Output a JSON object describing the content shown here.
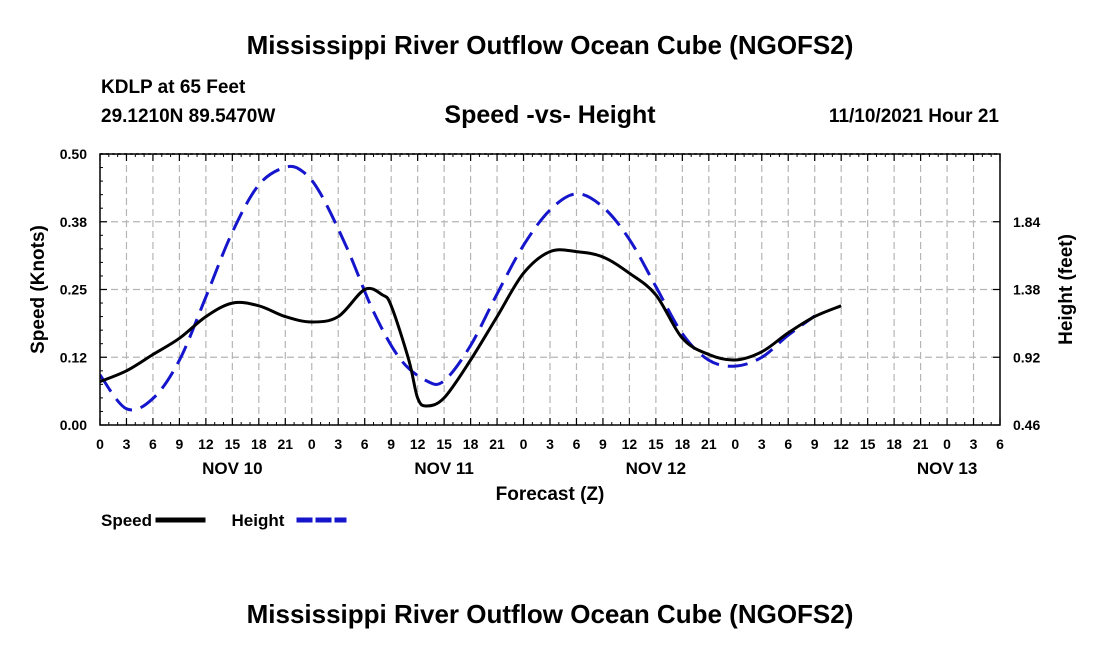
{
  "header": {
    "title": "Mississippi River Outflow Ocean Cube (NGOFS2)",
    "station": "KDLP at 65 Feet",
    "coords": "29.1210N  89.5470W",
    "subtitle": "Speed -vs- Height",
    "runtime": "11/10/2021 Hour 21"
  },
  "footer": {
    "title": "Mississippi River Outflow Ocean Cube (NGOFS2)"
  },
  "chart_data": {
    "type": "line",
    "title": "Speed -vs- Height",
    "xlabel": "Forecast (Z)",
    "ylabel": "Speed (Knots)",
    "y2label": "Height (feet)",
    "x_unit": "hours since NOV 10 00Z",
    "xlim": [
      -21,
      78
    ],
    "ylim": [
      0,
      0.5
    ],
    "y2lim": [
      0.46,
      2.3
    ],
    "grid": true,
    "x_ticks": [
      {
        "x": -21,
        "label": "0"
      },
      {
        "x": -18,
        "label": "3"
      },
      {
        "x": -15,
        "label": "6"
      },
      {
        "x": -12,
        "label": "9"
      },
      {
        "x": -9,
        "label": "12"
      },
      {
        "x": -6,
        "label": "15"
      },
      {
        "x": -3,
        "label": "18"
      },
      {
        "x": 0,
        "label": "21"
      },
      {
        "x": 3,
        "label": "0"
      },
      {
        "x": 6,
        "label": "3"
      },
      {
        "x": 9,
        "label": "6"
      },
      {
        "x": 12,
        "label": "9"
      },
      {
        "x": 15,
        "label": "12"
      },
      {
        "x": 18,
        "label": "15"
      },
      {
        "x": 21,
        "label": "18"
      },
      {
        "x": 24,
        "label": "21"
      },
      {
        "x": 27,
        "label": "0"
      },
      {
        "x": 30,
        "label": "3"
      },
      {
        "x": 33,
        "label": "6"
      },
      {
        "x": 36,
        "label": "9"
      },
      {
        "x": 39,
        "label": "12"
      },
      {
        "x": 42,
        "label": "15"
      },
      {
        "x": 45,
        "label": "18"
      },
      {
        "x": 48,
        "label": "21"
      },
      {
        "x": 51,
        "label": "0"
      },
      {
        "x": 54,
        "label": "3"
      },
      {
        "x": 57,
        "label": "6"
      },
      {
        "x": 60,
        "label": "9"
      },
      {
        "x": 63,
        "label": "12"
      },
      {
        "x": 66,
        "label": "15"
      },
      {
        "x": 69,
        "label": "18"
      },
      {
        "x": 72,
        "label": "21"
      },
      {
        "x": 75,
        "label": "0"
      },
      {
        "x": 78,
        "label": "3"
      },
      {
        "x": 81,
        "label": "6"
      }
    ],
    "day_labels": [
      {
        "x": -6,
        "label": "NOV 10"
      },
      {
        "x": 18,
        "label": "NOV 11"
      },
      {
        "x": 42,
        "label": "NOV 12"
      },
      {
        "x": 75,
        "label": "NOV 13"
      }
    ],
    "y_ticks": [
      {
        "v": 0.0,
        "label": "0.00"
      },
      {
        "v": 0.125,
        "label": "0.12"
      },
      {
        "v": 0.25,
        "label": "0.25"
      },
      {
        "v": 0.375,
        "label": "0.38"
      },
      {
        "v": 0.5,
        "label": "0.50"
      }
    ],
    "y2_ticks": [
      {
        "v": 0.46,
        "label": "0.46"
      },
      {
        "v": 0.92,
        "label": "0.92"
      },
      {
        "v": 1.38,
        "label": "1.38"
      },
      {
        "v": 1.84,
        "label": "1.84"
      }
    ],
    "series": [
      {
        "name": "Speed",
        "axis": "left",
        "color": "#000000",
        "dash": false,
        "x": [
          -21,
          -18,
          -15,
          -12,
          -9,
          -6,
          -3,
          0,
          3,
          6,
          9,
          11,
          12,
          14,
          15,
          16,
          18,
          21,
          24,
          27,
          30,
          33,
          36,
          39,
          42,
          45,
          48,
          51,
          54,
          57,
          60,
          63
        ],
        "values": [
          0.08,
          0.1,
          0.13,
          0.16,
          0.2,
          0.225,
          0.22,
          0.2,
          0.19,
          0.2,
          0.25,
          0.24,
          0.22,
          0.12,
          0.05,
          0.035,
          0.05,
          0.12,
          0.2,
          0.28,
          0.32,
          0.32,
          0.31,
          0.28,
          0.24,
          0.16,
          0.13,
          0.12,
          0.135,
          0.17,
          0.2,
          0.22
        ]
      },
      {
        "name": "Height",
        "axis": "right",
        "color": "#1515cc",
        "dash": true,
        "x": [
          -21,
          -18,
          -15,
          -12,
          -9,
          -6,
          -3,
          0,
          2,
          4,
          7,
          10,
          13,
          16,
          18,
          21,
          24,
          27,
          30,
          33,
          36,
          39,
          42,
          45,
          48,
          51,
          54,
          57,
          60
        ],
        "values": [
          0.8,
          0.57,
          0.64,
          0.9,
          1.33,
          1.77,
          2.09,
          2.21,
          2.18,
          2.03,
          1.66,
          1.23,
          0.91,
          0.76,
          0.76,
          1.0,
          1.35,
          1.68,
          1.92,
          2.03,
          1.94,
          1.72,
          1.4,
          1.08,
          0.9,
          0.86,
          0.92,
          1.07,
          1.2
        ]
      }
    ],
    "legend": {
      "position": "bottom-left",
      "items": [
        {
          "label": "Speed",
          "color": "#000000",
          "dash": false
        },
        {
          "label": "Height",
          "color": "#1515cc",
          "dash": true
        }
      ]
    }
  }
}
